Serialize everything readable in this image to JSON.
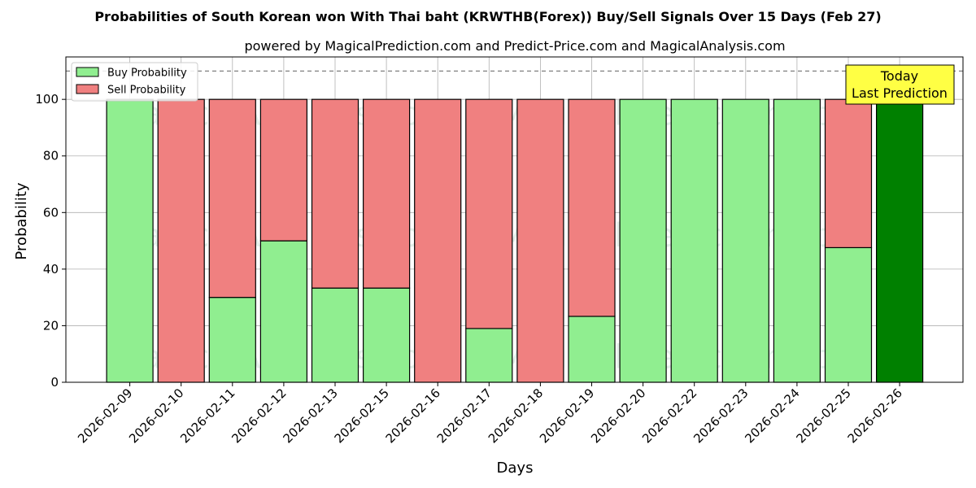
{
  "chart_data": {
    "type": "bar",
    "title": "Probabilities of South Korean won With Thai baht (KRWTHB(Forex)) Buy/Sell Signals Over 15 Days (Feb 27)",
    "subtitle": "powered by MagicalPrediction.com and Predict-Price.com and MagicalAnalysis.com",
    "xlabel": "Days",
    "ylabel": "Probability",
    "ylim": [
      0,
      115
    ],
    "yticks": [
      0,
      20,
      40,
      60,
      80,
      100
    ],
    "categories": [
      "2026-02-09",
      "2026-02-10",
      "2026-02-11",
      "2026-02-12",
      "2026-02-13",
      "2026-02-15",
      "2026-02-16",
      "2026-02-17",
      "2026-02-18",
      "2026-02-19",
      "2026-02-20",
      "2026-02-22",
      "2026-02-23",
      "2026-02-24",
      "2026-02-25",
      "2026-02-26"
    ],
    "series": [
      {
        "name": "Buy Probability",
        "color": "#90ee90",
        "values": [
          100,
          0,
          30,
          50,
          33.3,
          33.3,
          0,
          19,
          0,
          23.3,
          100,
          100,
          100,
          100,
          47.6,
          100
        ]
      },
      {
        "name": "Sell Probability",
        "color": "#f08080",
        "values": [
          0,
          100,
          70,
          50,
          66.7,
          66.7,
          100,
          81,
          100,
          76.7,
          0,
          0,
          0,
          0,
          52.4,
          0
        ]
      }
    ],
    "highlight_color": "#008000",
    "reference_line": 110,
    "grid": true,
    "legend_placement": "top-left",
    "annotation": {
      "line1": "Today",
      "line2": "Last Prediction",
      "color": "#ffff44"
    },
    "watermarks": [
      "MagicalAnalysis.com",
      "MagicalPrediction.com"
    ]
  }
}
